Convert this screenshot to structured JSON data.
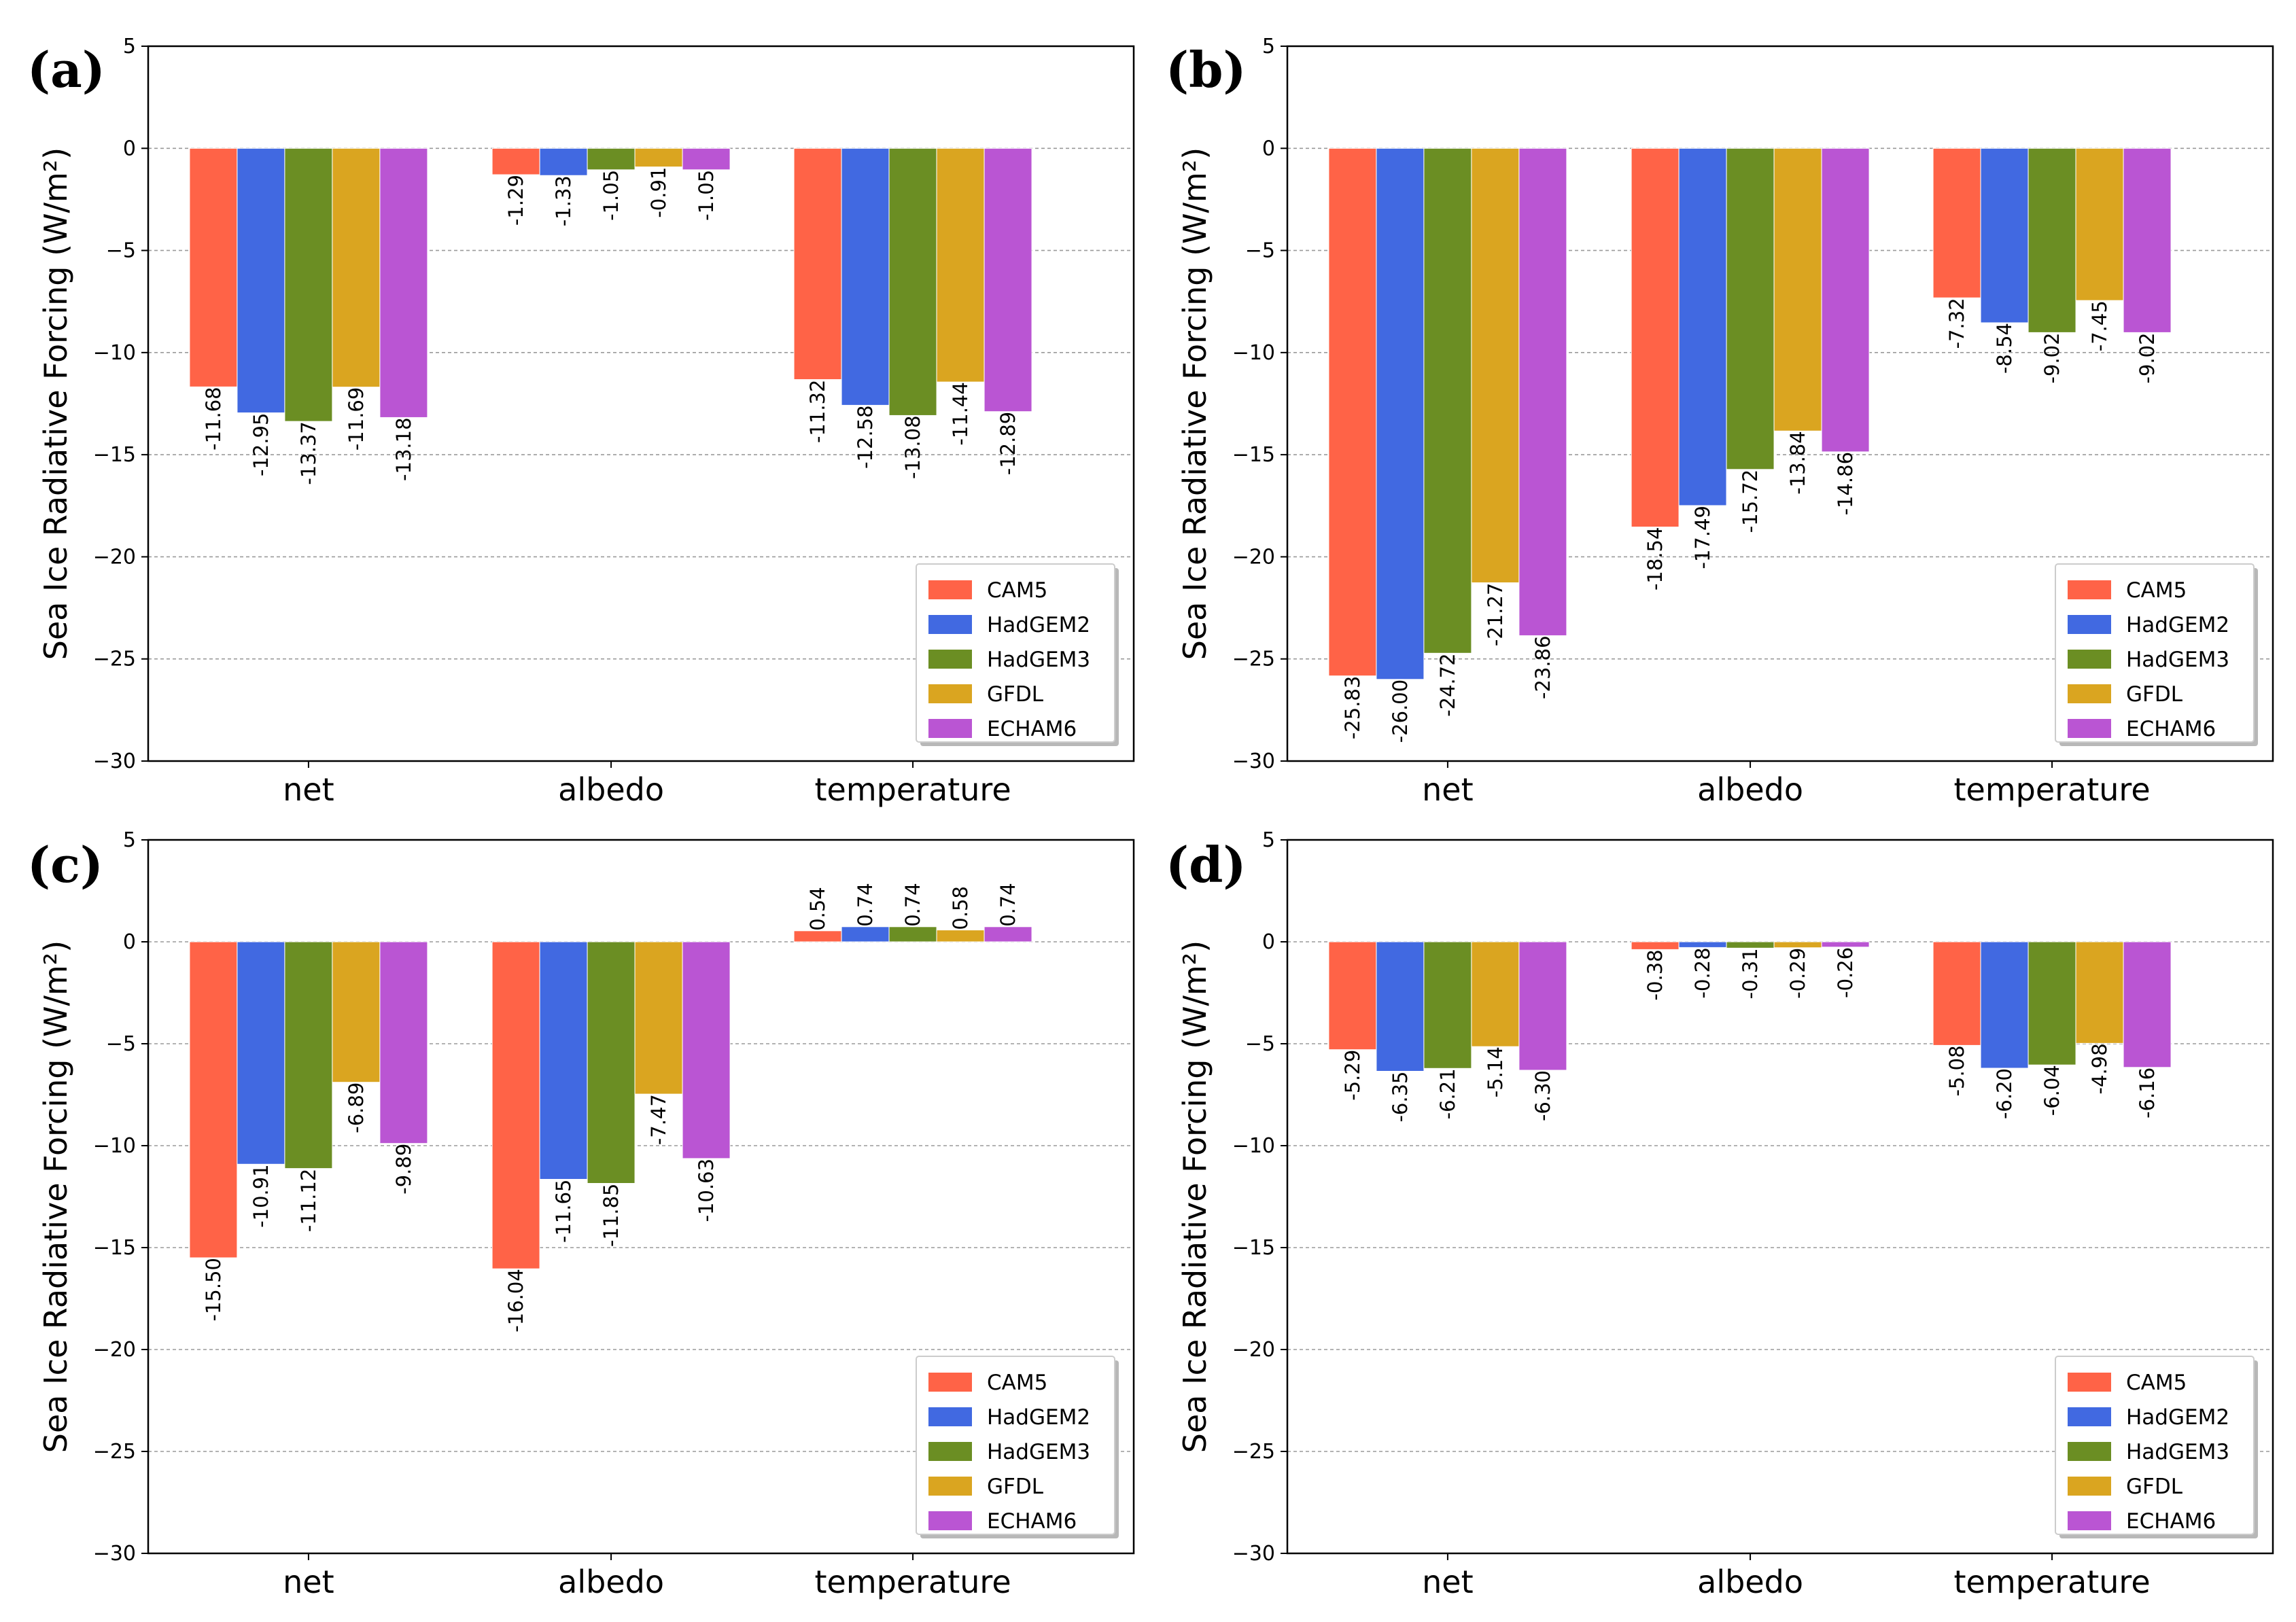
{
  "figure": {
    "colors": {
      "CAM5": "#ff6347",
      "HadGEM2": "#4169e1",
      "HadGEM3": "#6b8e23",
      "GFDL": "#daa520",
      "ECHAM6": "#ba55d3"
    }
  },
  "chart_data": [
    {
      "panel": "(a)",
      "type": "bar",
      "ylabel": "Sea Ice Radiative Forcing (W/m²)",
      "ylim": [
        -30,
        5
      ],
      "yticks": [
        "5",
        "0",
        "−5",
        "−10",
        "−15",
        "−20",
        "−25",
        "−30"
      ],
      "grid": "horizontal dashed",
      "legend": "bottom-right",
      "categories": [
        "net",
        "albedo",
        "temperature"
      ],
      "series": [
        {
          "name": "CAM5",
          "values": [
            -11.68,
            -1.29,
            -11.32
          ],
          "labels": [
            "-11.68",
            "-1.29",
            "-11.32"
          ]
        },
        {
          "name": "HadGEM2",
          "values": [
            -12.95,
            -1.33,
            -12.58
          ],
          "labels": [
            "-12.95",
            "-1.33",
            "-12.58"
          ]
        },
        {
          "name": "HadGEM3",
          "values": [
            -13.37,
            -1.05,
            -13.08
          ],
          "labels": [
            "-13.37",
            "-1.05",
            "-13.08"
          ]
        },
        {
          "name": "GFDL",
          "values": [
            -11.69,
            -0.91,
            -11.44
          ],
          "labels": [
            "-11.69",
            "-0.91",
            "-11.44"
          ]
        },
        {
          "name": "ECHAM6",
          "values": [
            -13.18,
            -1.05,
            -12.89
          ],
          "labels": [
            "-13.18",
            "-1.05",
            "-12.89"
          ]
        }
      ]
    },
    {
      "panel": "(b)",
      "type": "bar",
      "ylabel": "Sea Ice Radiative Forcing (W/m²)",
      "ylim": [
        -30,
        5
      ],
      "yticks": [
        "5",
        "0",
        "−5",
        "−10",
        "−15",
        "−20",
        "−25",
        "−30"
      ],
      "grid": "horizontal dashed",
      "legend": "bottom-right",
      "categories": [
        "net",
        "albedo",
        "temperature"
      ],
      "series": [
        {
          "name": "CAM5",
          "values": [
            -25.83,
            -18.54,
            -7.32
          ],
          "labels": [
            "-25.83",
            "-18.54",
            "-7.32"
          ]
        },
        {
          "name": "HadGEM2",
          "values": [
            -26.0,
            -17.49,
            -8.54
          ],
          "labels": [
            "-26.00",
            "-17.49",
            "-8.54"
          ]
        },
        {
          "name": "HadGEM3",
          "values": [
            -24.72,
            -15.72,
            -9.02
          ],
          "labels": [
            "-24.72",
            "-15.72",
            "-9.02"
          ]
        },
        {
          "name": "GFDL",
          "values": [
            -21.27,
            -13.84,
            -7.45
          ],
          "labels": [
            "-21.27",
            "-13.84",
            "-7.45"
          ]
        },
        {
          "name": "ECHAM6",
          "values": [
            -23.86,
            -14.86,
            -9.02
          ],
          "labels": [
            "-23.86",
            "-14.86",
            "-9.02"
          ]
        }
      ]
    },
    {
      "panel": "(c)",
      "type": "bar",
      "ylabel": "Sea Ice Radiative Forcing (W/m²)",
      "ylim": [
        -30,
        5
      ],
      "yticks": [
        "5",
        "0",
        "−5",
        "−10",
        "−15",
        "−20",
        "−25",
        "−30"
      ],
      "grid": "horizontal dashed",
      "legend": "bottom-right",
      "categories": [
        "net",
        "albedo",
        "temperature"
      ],
      "series": [
        {
          "name": "CAM5",
          "values": [
            -15.5,
            -16.04,
            0.54
          ],
          "labels": [
            "-15.50",
            "-16.04",
            "0.54"
          ]
        },
        {
          "name": "HadGEM2",
          "values": [
            -10.91,
            -11.65,
            0.74
          ],
          "labels": [
            "-10.91",
            "-11.65",
            "0.74"
          ]
        },
        {
          "name": "HadGEM3",
          "values": [
            -11.12,
            -11.85,
            0.74
          ],
          "labels": [
            "-11.12",
            "-11.85",
            "0.74"
          ]
        },
        {
          "name": "GFDL",
          "values": [
            -6.89,
            -7.47,
            0.58
          ],
          "labels": [
            "-6.89",
            "-7.47",
            "0.58"
          ]
        },
        {
          "name": "ECHAM6",
          "values": [
            -9.89,
            -10.63,
            0.74
          ],
          "labels": [
            "-9.89",
            "-10.63",
            "0.74"
          ]
        }
      ]
    },
    {
      "panel": "(d)",
      "type": "bar",
      "ylabel": "Sea Ice Radiative Forcing (W/m²)",
      "ylim": [
        -30,
        5
      ],
      "yticks": [
        "5",
        "0",
        "−5",
        "−10",
        "−15",
        "−20",
        "−25",
        "−30"
      ],
      "grid": "horizontal dashed",
      "legend": "bottom-right",
      "categories": [
        "net",
        "albedo",
        "temperature"
      ],
      "series": [
        {
          "name": "CAM5",
          "values": [
            -5.29,
            -0.38,
            -5.08
          ],
          "labels": [
            "-5.29",
            "-0.38",
            "-5.08"
          ]
        },
        {
          "name": "HadGEM2",
          "values": [
            -6.35,
            -0.28,
            -6.2
          ],
          "labels": [
            "-6.35",
            "-0.28",
            "-6.20"
          ]
        },
        {
          "name": "HadGEM3",
          "values": [
            -6.21,
            -0.31,
            -6.04
          ],
          "labels": [
            "-6.21",
            "-0.31",
            "-6.04"
          ]
        },
        {
          "name": "GFDL",
          "values": [
            -5.14,
            -0.29,
            -4.98
          ],
          "labels": [
            "-5.14",
            "-0.29",
            "-4.98"
          ]
        },
        {
          "name": "ECHAM6",
          "values": [
            -6.3,
            -0.26,
            -6.16
          ],
          "labels": [
            "-6.30",
            "-0.26",
            "-6.16"
          ]
        }
      ]
    }
  ]
}
